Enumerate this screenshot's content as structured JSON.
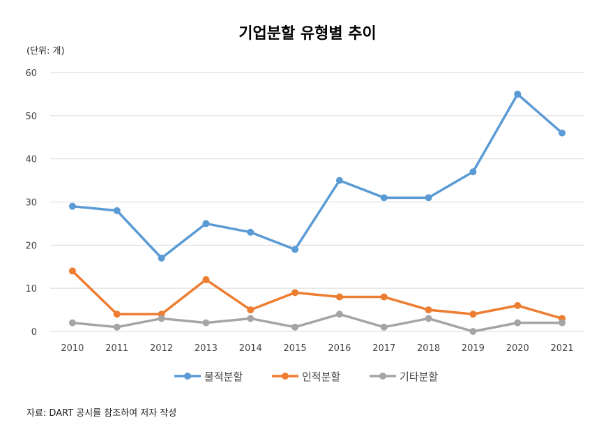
{
  "chart_data": {
    "type": "line",
    "title": "기업분할 유형별 추이",
    "unit_note": "(단위: 개)",
    "source": "자료:  DART 공시를 참조하여 저자 작성",
    "x": [
      "2010",
      "2011",
      "2012",
      "2013",
      "2014",
      "2015",
      "2016",
      "2017",
      "2018",
      "2019",
      "2020",
      "2021"
    ],
    "ylim": [
      0,
      60
    ],
    "yticks": [
      0,
      10,
      20,
      30,
      40,
      50,
      60
    ],
    "grid": true,
    "legend_position": "bottom",
    "series": [
      {
        "name": "물적분할",
        "color": "#5B9BD5",
        "values": [
          29,
          28,
          17,
          25,
          23,
          19,
          35,
          31,
          31,
          37,
          55,
          46
        ]
      },
      {
        "name": "인적분할",
        "color": "#ED7D31",
        "values": [
          14,
          4,
          4,
          12,
          5,
          9,
          8,
          8,
          5,
          4,
          6,
          3
        ]
      },
      {
        "name": "기타분할",
        "color": "#A5A5A5",
        "values": [
          2,
          1,
          3,
          2,
          3,
          1,
          4,
          1,
          3,
          0,
          2,
          2
        ]
      }
    ]
  }
}
